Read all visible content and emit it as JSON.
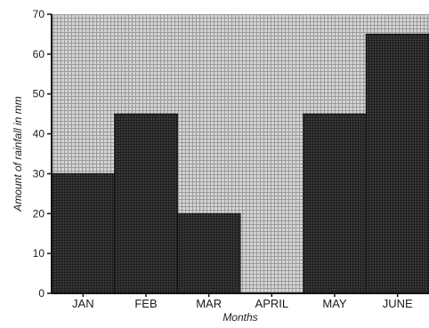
{
  "chart_data": {
    "type": "bar",
    "categories": [
      "JAN",
      "FEB",
      "MAR",
      "APRIL",
      "MAY",
      "JUNE"
    ],
    "values": [
      30,
      45,
      20,
      0,
      45,
      65
    ],
    "title": "",
    "xlabel": "Months",
    "ylabel": "Amount of rainfall in mm",
    "ylim": [
      0,
      70
    ],
    "yticks": [
      0,
      10,
      20,
      30,
      40,
      50,
      60,
      70
    ],
    "grid": true,
    "legend": "none",
    "colors": {
      "background": "#ffffff",
      "plot_background": "#d6d6d6",
      "grid": "#9a9a9a",
      "bar_fill": "#3a3a3a",
      "axis": "#111111"
    }
  }
}
